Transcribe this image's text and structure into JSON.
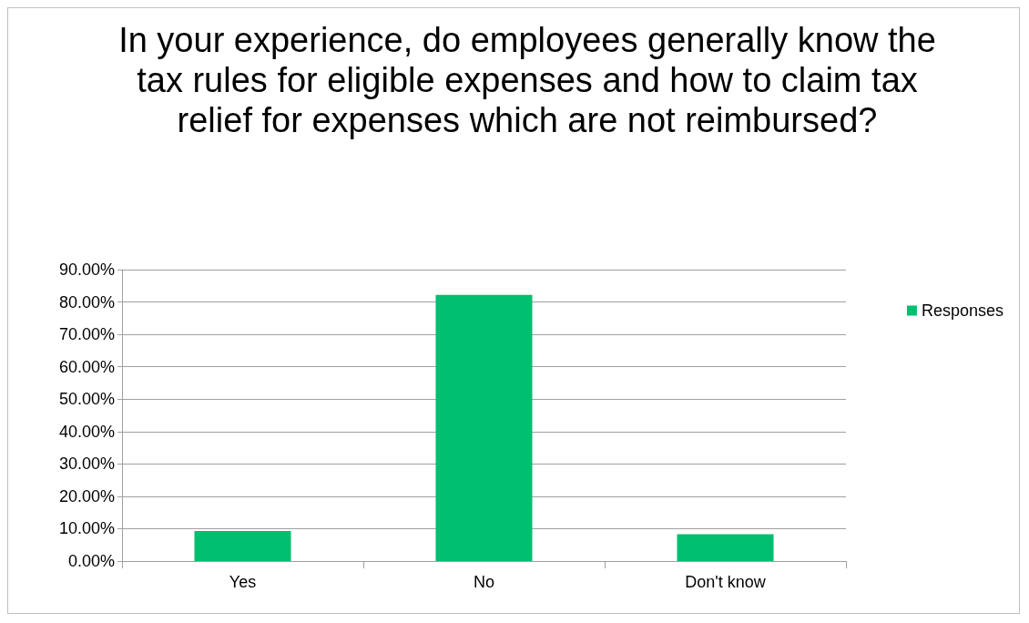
{
  "chart_data": {
    "type": "bar",
    "title": "In your experience, do employees generally know the tax rules for eligible expenses and how to claim tax relief for expenses which are not reimbursed?",
    "categories": [
      "Yes",
      "No",
      "Don't know"
    ],
    "series": [
      {
        "name": "Responses",
        "color": "#00bf6f",
        "values": [
          9.3,
          82.2,
          8.3
        ]
      }
    ],
    "ylim": [
      0,
      90
    ],
    "yticks": [
      {
        "value": 0,
        "label": "0.00%"
      },
      {
        "value": 10,
        "label": "10.00%"
      },
      {
        "value": 20,
        "label": "20.00%"
      },
      {
        "value": 30,
        "label": "30.00%"
      },
      {
        "value": 40,
        "label": "40.00%"
      },
      {
        "value": 50,
        "label": "50.00%"
      },
      {
        "value": 60,
        "label": "60.00%"
      },
      {
        "value": 70,
        "label": "70.00%"
      },
      {
        "value": 80,
        "label": "80.00%"
      },
      {
        "value": 90,
        "label": "90.00%"
      }
    ],
    "grid": "y",
    "legend": "right"
  }
}
